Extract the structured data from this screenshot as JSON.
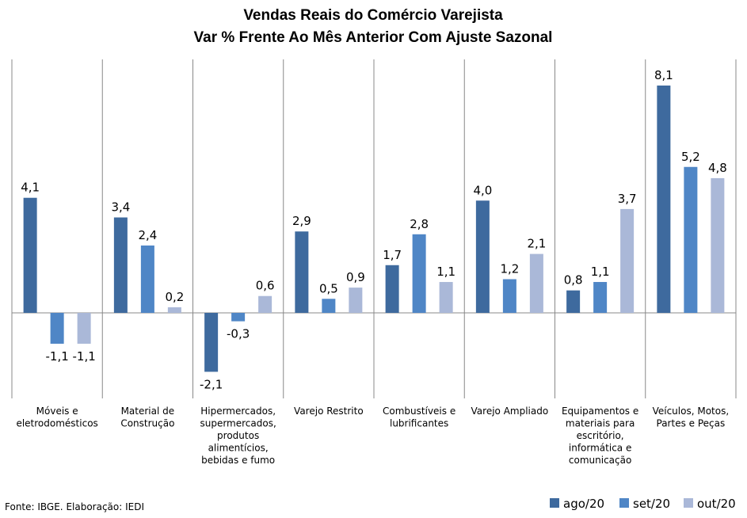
{
  "chart_data": {
    "type": "bar",
    "title": "Vendas Reais do Comércio Varejista",
    "subtitle": "Var % Frente Ao Mês Anterior Com Ajuste Sazonal",
    "categories": [
      [
        "Móveis e",
        "eletrodomésticos"
      ],
      [
        "Material de",
        "Construção"
      ],
      [
        "Hipermercados,",
        "supermercados,",
        "produtos",
        "alimentícios,",
        "bebidas e fumo"
      ],
      [
        "Varejo Restrito"
      ],
      [
        "Combustíveis e",
        "lubrificantes"
      ],
      [
        "Varejo Ampliado"
      ],
      [
        "Equipamentos e",
        "materiais para",
        "escritório,",
        "informática e",
        "comunicação"
      ],
      [
        "Veículos, Motos,",
        "Partes e Peças"
      ]
    ],
    "series": [
      {
        "name": "ago/20",
        "color": "#3E6A9E",
        "values": [
          4.1,
          3.4,
          -2.1,
          2.9,
          1.7,
          4.0,
          0.8,
          8.1
        ],
        "labels": [
          "4,1",
          "3,4",
          "-2,1",
          "2,9",
          "1,7",
          "4,0",
          "0,8",
          "8,1"
        ]
      },
      {
        "name": "set/20",
        "color": "#4F86C6",
        "values": [
          -1.1,
          2.4,
          -0.3,
          0.5,
          2.8,
          1.2,
          1.1,
          5.2
        ],
        "labels": [
          "-1,1",
          "2,4",
          "-0,3",
          "0,5",
          "2,8",
          "1,2",
          "1,1",
          "5,2"
        ]
      },
      {
        "name": "out/20",
        "color": "#AAB8D8",
        "values": [
          -1.1,
          0.2,
          0.6,
          0.9,
          1.1,
          2.1,
          3.7,
          4.8
        ],
        "labels": [
          "-1,1",
          "0,2",
          "0,6",
          "0,9",
          "1,1",
          "2,1",
          "3,7",
          "4,8"
        ]
      }
    ],
    "ylim": [
      -3,
      9
    ],
    "grid": false,
    "legend_position": "bottom-right"
  },
  "source": "Fonte: IBGE. Elaboração: IEDI"
}
